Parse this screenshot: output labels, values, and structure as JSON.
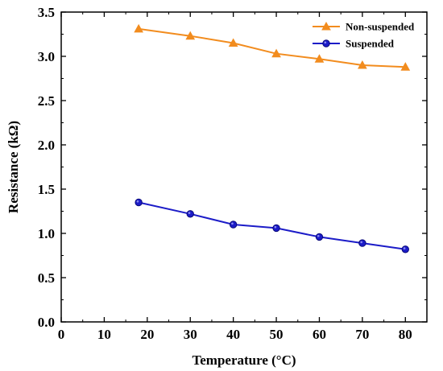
{
  "chart_data": {
    "type": "line",
    "xlabel": "Temperature (°C)",
    "ylabel": "Resistance (kΩ)",
    "xlim": [
      0,
      85
    ],
    "ylim": [
      0,
      3.5
    ],
    "xticks": [
      0,
      10,
      20,
      30,
      40,
      50,
      60,
      70,
      80
    ],
    "yticks": [
      0.0,
      0.5,
      1.0,
      1.5,
      2.0,
      2.5,
      3.0,
      3.5
    ],
    "xtick_labels": [
      "0",
      "10",
      "20",
      "30",
      "40",
      "50",
      "60",
      "70",
      "80"
    ],
    "ytick_labels": [
      "0.0",
      "0.5",
      "1.0",
      "1.5",
      "2.0",
      "2.5",
      "3.0",
      "3.5"
    ],
    "grid": false,
    "legend_position": "top-right",
    "x": [
      18,
      30,
      40,
      50,
      60,
      70,
      80
    ],
    "series": [
      {
        "name": "Non-suspended",
        "marker": "triangle",
        "color": "#F28C1E",
        "values": [
          3.31,
          3.23,
          3.15,
          3.03,
          2.97,
          2.9,
          2.88
        ]
      },
      {
        "name": "Suspended",
        "marker": "circle",
        "color": "#1C1CC8",
        "values": [
          1.35,
          1.22,
          1.1,
          1.06,
          0.96,
          0.89,
          0.82
        ]
      }
    ]
  }
}
